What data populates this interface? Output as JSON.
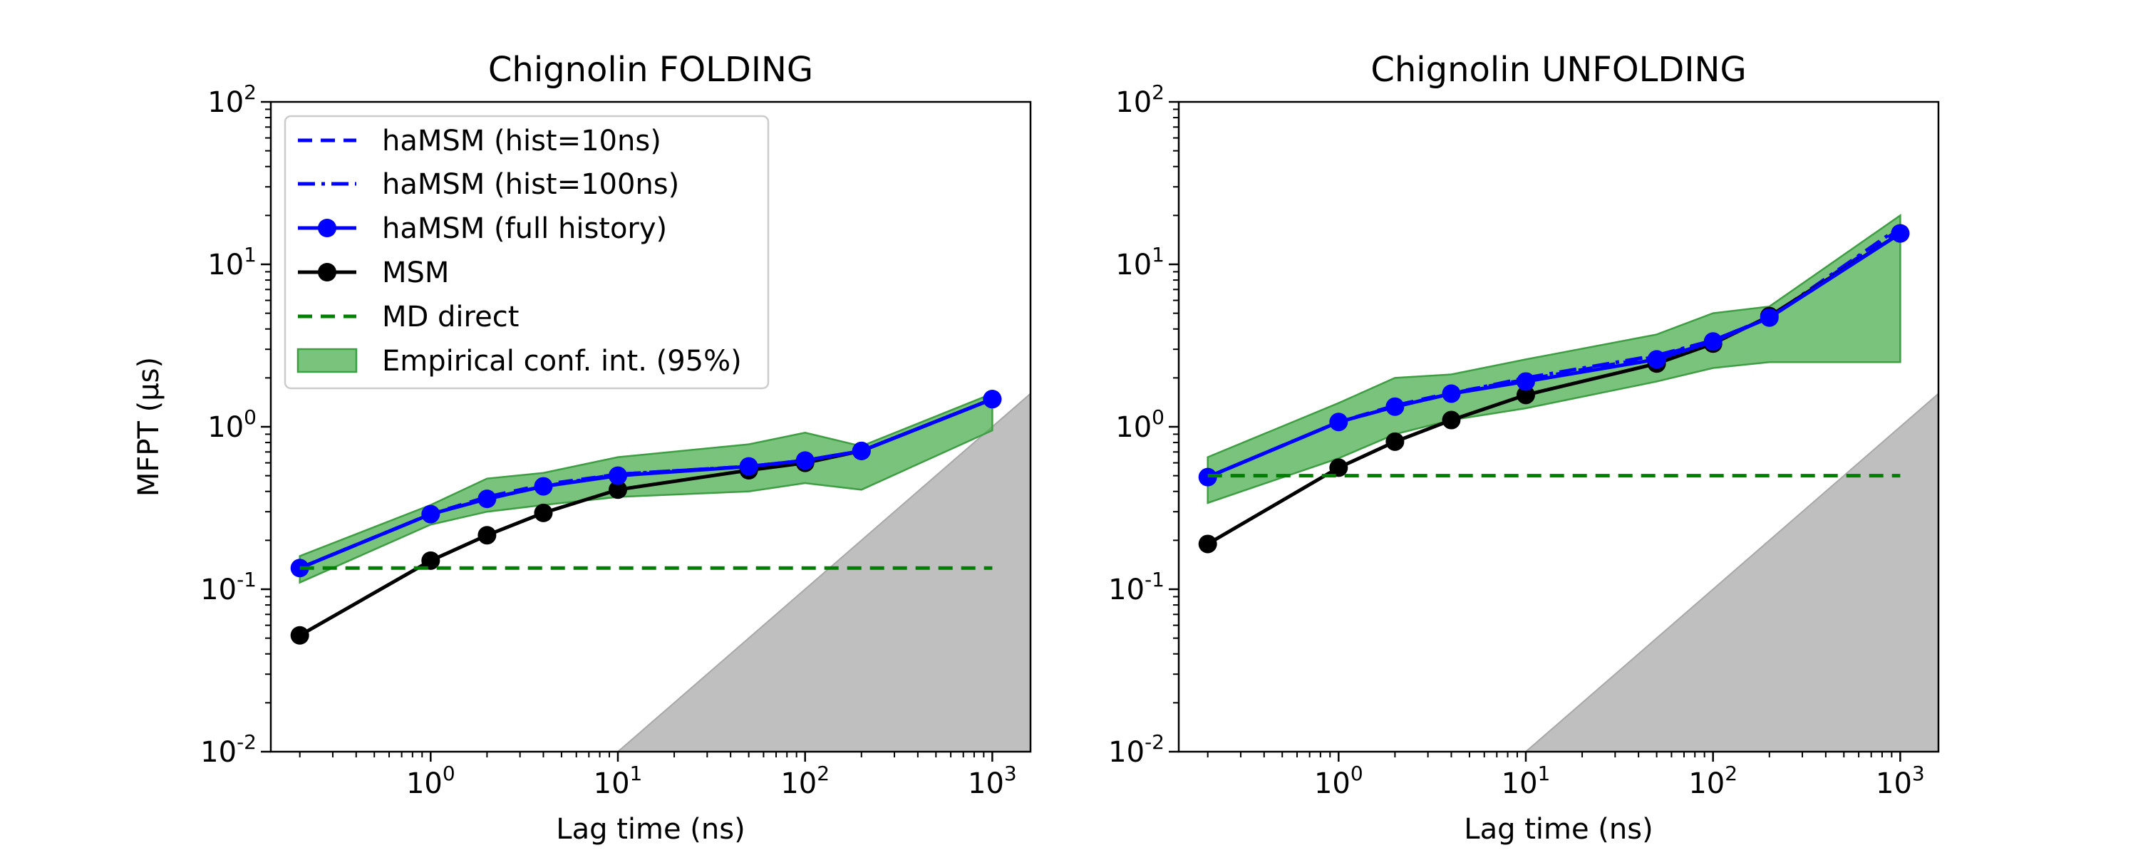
{
  "chart_data": [
    {
      "type": "line",
      "title": "Chignolin FOLDING",
      "xlabel": "Lag time (ns)",
      "ylabel": "MFPT (μs)",
      "xscale": "log",
      "yscale": "log",
      "xlim": [
        0.14,
        1600
      ],
      "ylim": [
        0.01,
        100
      ],
      "legend_placement": "top-left",
      "x": [
        0.2,
        1,
        2,
        4,
        10,
        50,
        100,
        200,
        1000
      ],
      "series": [
        {
          "name": "haMSM (hist=10ns)",
          "style": "dashed",
          "color": "#0000ff",
          "values": [
            0.135,
            0.29,
            0.37,
            0.44,
            0.51,
            0.57,
            0.62,
            0.71,
            1.48
          ]
        },
        {
          "name": "haMSM (hist=100ns)",
          "style": "dashdot",
          "color": "#0000ff",
          "values": [
            0.135,
            0.29,
            0.36,
            0.43,
            0.51,
            0.57,
            0.62,
            0.71,
            1.48
          ]
        },
        {
          "name": "haMSM (full history)",
          "style": "solid-marker",
          "color": "#0000ff",
          "values": [
            0.135,
            0.29,
            0.36,
            0.43,
            0.5,
            0.57,
            0.62,
            0.71,
            1.48
          ]
        },
        {
          "name": "MSM",
          "style": "solid-marker",
          "color": "#000000",
          "values": [
            0.052,
            0.15,
            0.215,
            0.295,
            0.41,
            0.54,
            0.6,
            0.71,
            1.48
          ]
        },
        {
          "name": "MD direct",
          "style": "dashed",
          "color": "#008000",
          "x": [
            0.2,
            1000
          ],
          "values": [
            0.135,
            0.135
          ]
        }
      ],
      "band": {
        "name": "Empirical conf. int. (95%)",
        "color": "#4caf50",
        "x": [
          0.2,
          1,
          2,
          4,
          10,
          50,
          100,
          200,
          1000
        ],
        "lower": [
          0.11,
          0.25,
          0.3,
          0.33,
          0.37,
          0.4,
          0.45,
          0.41,
          0.95
        ],
        "upper": [
          0.16,
          0.33,
          0.48,
          0.52,
          0.65,
          0.78,
          0.92,
          0.76,
          1.6
        ]
      },
      "shaded_region": {
        "description": "MFPT below lag time",
        "color": "#bfbfbf",
        "from_x": 10
      }
    },
    {
      "type": "line",
      "title": "Chignolin UNFOLDING",
      "xlabel": "Lag time (ns)",
      "ylabel": "",
      "xscale": "log",
      "yscale": "log",
      "xlim": [
        0.14,
        1600
      ],
      "ylim": [
        0.01,
        100
      ],
      "x": [
        0.2,
        1,
        2,
        4,
        10,
        50,
        100,
        200,
        1000
      ],
      "series": [
        {
          "name": "haMSM (hist=10ns)",
          "style": "dashed",
          "color": "#0000ff",
          "values": [
            0.49,
            1.07,
            1.35,
            1.62,
            1.95,
            2.7,
            3.4,
            4.7,
            16.5
          ]
        },
        {
          "name": "haMSM (hist=100ns)",
          "style": "dashdot",
          "color": "#0000ff",
          "values": [
            0.49,
            1.07,
            1.33,
            1.6,
            2.0,
            2.75,
            3.4,
            4.7,
            17.0
          ]
        },
        {
          "name": "haMSM (full history)",
          "style": "solid-marker",
          "color": "#0000ff",
          "values": [
            0.49,
            1.07,
            1.33,
            1.6,
            1.9,
            2.6,
            3.35,
            4.7,
            15.5
          ]
        },
        {
          "name": "MSM",
          "style": "solid-marker",
          "color": "#000000",
          "values": [
            0.19,
            0.56,
            0.81,
            1.1,
            1.57,
            2.45,
            3.25,
            4.8,
            15.5
          ]
        },
        {
          "name": "MD direct",
          "style": "dashed",
          "color": "#008000",
          "x": [
            0.2,
            1000
          ],
          "values": [
            0.5,
            0.5
          ]
        }
      ],
      "band": {
        "name": "Empirical conf. int. (95%)",
        "color": "#4caf50",
        "x": [
          0.2,
          1,
          2,
          4,
          10,
          50,
          100,
          200,
          1000
        ],
        "lower": [
          0.34,
          0.64,
          0.9,
          1.1,
          1.3,
          1.9,
          2.3,
          2.5,
          2.5
        ],
        "upper": [
          0.65,
          1.4,
          2.0,
          2.1,
          2.6,
          3.7,
          5.0,
          5.5,
          20.0
        ]
      },
      "shaded_region": {
        "description": "MFPT below lag time",
        "color": "#bfbfbf",
        "from_x": 10
      }
    }
  ],
  "legend": {
    "entries": [
      "haMSM (hist=10ns)",
      "haMSM (hist=100ns)",
      "haMSM (full history)",
      "MSM",
      "MD direct",
      "Empirical conf. int. (95%)"
    ]
  }
}
